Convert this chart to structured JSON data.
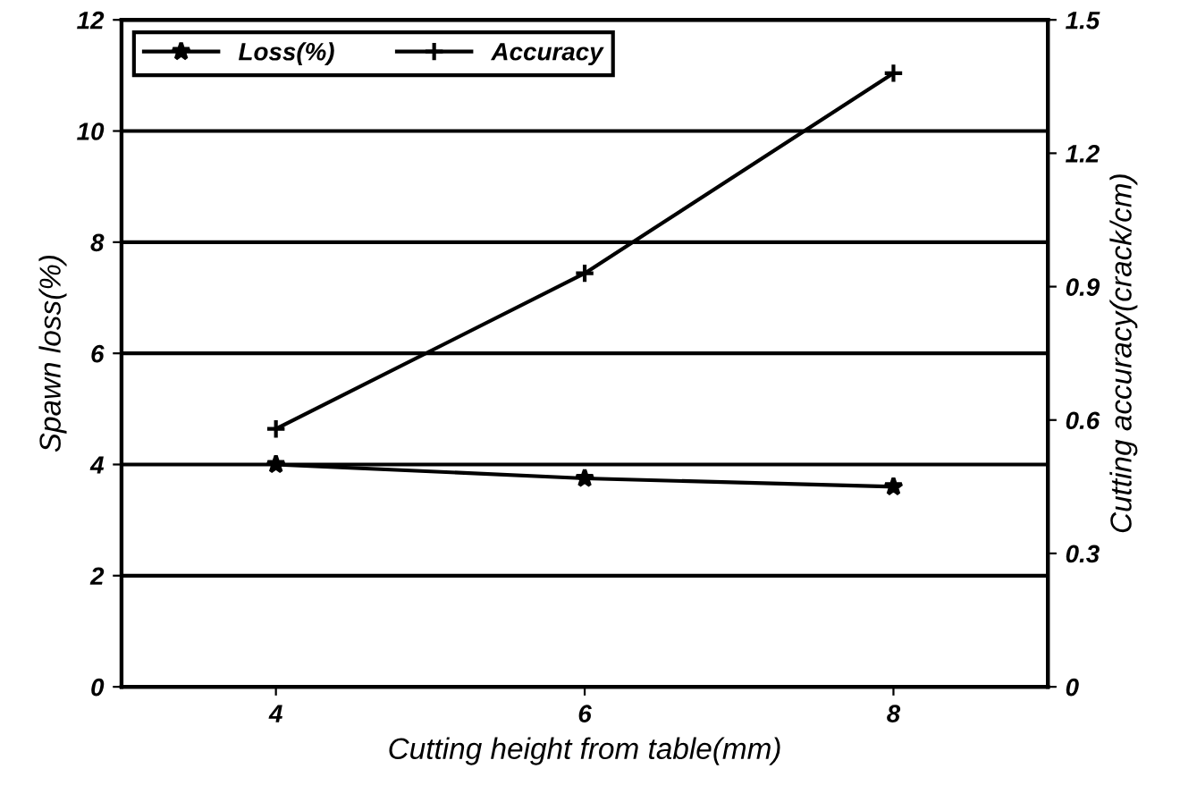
{
  "chart_data": {
    "type": "line",
    "xlabel": "Cutting height from table(mm)",
    "ylabel": "Spawn loss(%)",
    "y2label": "Cutting accuracy(crack/cm)",
    "x": [
      4,
      6,
      8
    ],
    "series": [
      {
        "name": "Loss(%)",
        "color": "#000000",
        "marker": "star",
        "values": [
          4.0,
          3.75,
          3.6
        ]
      },
      {
        "name": "Accuracy",
        "color": "#000000",
        "marker": "cross",
        "axis": "y2",
        "values": [
          0.58,
          0.93,
          1.38
        ]
      }
    ],
    "xlim": [
      3,
      9
    ],
    "xticks": [
      4,
      6,
      8
    ],
    "ylim": [
      0,
      12
    ],
    "yticks": [
      0,
      2,
      4,
      6,
      8,
      10,
      12
    ],
    "y2lim": [
      0,
      1.5
    ],
    "y2ticks": [
      0,
      0.3,
      0.6,
      0.9,
      1.2,
      1.5
    ],
    "grid": "y",
    "legend": "top left",
    "line_style": "solid"
  }
}
